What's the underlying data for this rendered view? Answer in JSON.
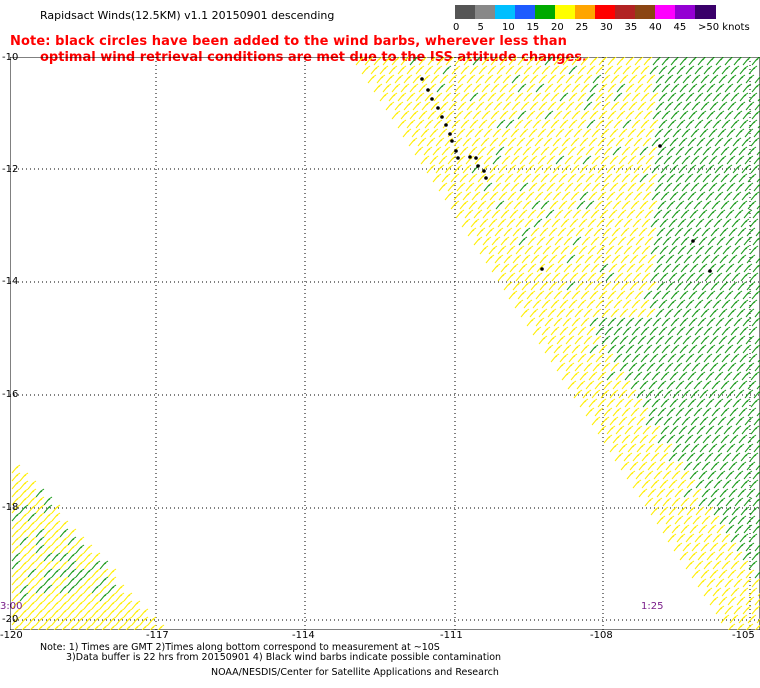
{
  "header": {
    "title": "Rapidsact Winds(12.5KM) v1.1 20150901 descending",
    "note_line1": "Note: black circles have been added to the wind barbs, wherever less than",
    "note_line2": "optimal wind retrieval conditions are met due to the ISS attitude changes."
  },
  "legend": {
    "ticks": [
      "0",
      "5",
      "10",
      "15",
      "20",
      "25",
      "30",
      "35",
      "40",
      "45",
      ">50 knots"
    ],
    "colors": [
      "#555555",
      "#888888",
      "#00bfff",
      "#1e5bff",
      "#00aa00",
      "#ffff00",
      "#ffa500",
      "#ff0000",
      "#b22222",
      "#8b4513",
      "#ff00ff",
      "#9400d3",
      "#3a006a"
    ]
  },
  "map": {
    "lat_labels": [
      "-10",
      "-12",
      "-14",
      "-16",
      "-18",
      "-20"
    ],
    "lon_labels": [
      "-120",
      "-117",
      "-114",
      "-111",
      "-108",
      "-105"
    ],
    "time_left": "3:00",
    "time_right": "1:25",
    "barb_colors": {
      "light_wind": "#ffee00",
      "moderate_wind": "#1a9a1a",
      "flagged": "#000000"
    }
  },
  "footer": {
    "note1": "Note: 1) Times are GMT 2)Times along bottom correspond to measurement at ~10S",
    "note2": "3)Data buffer is 22 hrs from 20150901 4) Black wind barbs indicate possible contamination",
    "credit": "NOAA/NESDIS/Center for Satellite Applications and Research"
  }
}
